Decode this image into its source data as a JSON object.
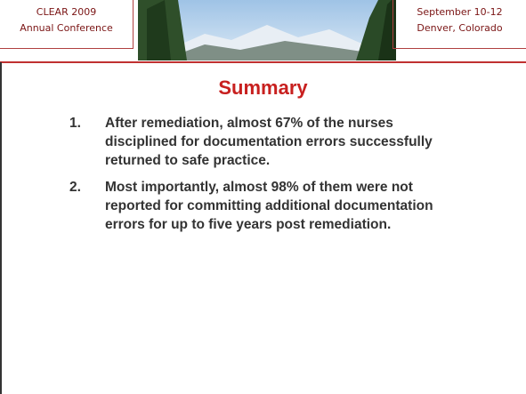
{
  "header": {
    "left": [
      "CLEAR 2009",
      "Annual Conference"
    ],
    "right": [
      "September 10-12",
      "Denver, Colorado"
    ]
  },
  "title": "Summary",
  "items": [
    {
      "number": "1.",
      "text": "After remediation, almost 67% of the nurses disciplined for documentation errors successfully returned to safe practice."
    },
    {
      "number": "2.",
      "text": "Most importantly, almost 98% of them were not reported for committing additional documentation errors for up to five years post remediation."
    }
  ]
}
